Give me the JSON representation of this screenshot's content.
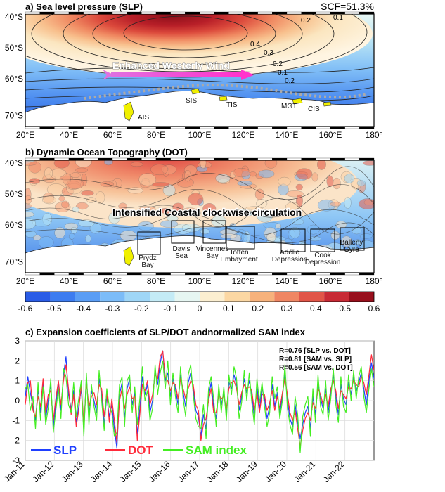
{
  "panel_a": {
    "title": "a) Sea level pressure (SLP)",
    "scf": "SCF=51.3%",
    "wind_label": "Enhanced Westerly Wind",
    "lat_labels": [
      "40°S",
      "50°S",
      "60°S",
      "70°S"
    ],
    "lon_labels": [
      "20°E",
      "40°E",
      "60°E",
      "80°E",
      "100°E",
      "120°E",
      "140°E",
      "160°E",
      "180°"
    ],
    "contour_labels": [
      "0.2",
      "0.1",
      "0.4",
      "0.3",
      "0.2",
      "0.1",
      "0.2"
    ],
    "places": [
      "AIS",
      "SIS",
      "TIS",
      "MGT",
      "CIS"
    ]
  },
  "panel_b": {
    "title": "b) Dynamic Ocean Topography (DOT)",
    "circulation_label": "Intensified Coastal clockwise circulation",
    "lat_labels": [
      "40°S",
      "50°S",
      "60°S",
      "70°S"
    ],
    "lon_labels": [
      "20°E",
      "40°E",
      "60°E",
      "80°E",
      "100°E",
      "120°E",
      "140°E",
      "160°E",
      "180°"
    ],
    "boxes": [
      {
        "name": "Prydz Bay",
        "lines": [
          "Prydz",
          "Bay"
        ]
      },
      {
        "name": "Davis Sea",
        "lines": [
          "Davis",
          "Sea"
        ]
      },
      {
        "name": "Vincennes Bay",
        "lines": [
          "Vincennes",
          "Bay"
        ]
      },
      {
        "name": "Totten Embayment",
        "lines": [
          "Totten",
          "Embayment"
        ]
      },
      {
        "name": "Adélie Depression",
        "lines": [
          "Adélie",
          "Depression"
        ]
      },
      {
        "name": "Cook Depression",
        "lines": [
          "Cook",
          "Depression"
        ]
      },
      {
        "name": "Balleny Gyre",
        "lines": [
          "Balleny",
          "Gyre"
        ]
      }
    ]
  },
  "colorbar": {
    "ticks": [
      "-0.6",
      "-0.5",
      "-0.4",
      "-0.3",
      "-0.2",
      "-0.1",
      "0",
      "0.1",
      "0.2",
      "0.3",
      "0.4",
      "0.5",
      "0.6"
    ],
    "colors": [
      "#2a5ce6",
      "#3d7cf0",
      "#5a9df5",
      "#7cbcf8",
      "#9fd6f7",
      "#c4ebf6",
      "#e6f6f2",
      "#fbeed0",
      "#fbd7a3",
      "#f7b27c",
      "#ef8663",
      "#e15548",
      "#c82a35",
      "#980f1c"
    ]
  },
  "chart_data": {
    "type": "line",
    "title": "c) Expansion coefficients of SLP/DOT andnormalized SAM index",
    "ylim": [
      -3,
      3
    ],
    "yticks": [
      "3",
      "2",
      "1",
      "0",
      "-1",
      "-2",
      "-3"
    ],
    "xticks": [
      "Jan-11",
      "Jan-12",
      "Jan-13",
      "Jan-14",
      "Jan-15",
      "Jan-16",
      "Jan-17",
      "Jan-18",
      "Jan-19",
      "Jan-20",
      "Jan-21",
      "Jan-22"
    ],
    "grid": true,
    "annotations": [
      "R=0.76 [SLP vs. DOT]",
      "R=0.81 [SAM vs. SLP]",
      "R=0.56 [SAM vs. DOT]"
    ],
    "series": [
      {
        "name": "SLP",
        "color": "#1f3fff",
        "values": [
          0.2,
          1.2,
          0.4,
          -0.3,
          -1.0,
          0.6,
          -0.6,
          1.0,
          -0.9,
          0.0,
          0.8,
          -1.3,
          -0.2,
          0.9,
          -0.5,
          1.3,
          2.2,
          0.3,
          -0.4,
          0.5,
          -1.1,
          -0.3,
          0.6,
          -1.5,
          1.2,
          -0.8,
          0.5,
          0.0,
          -0.6,
          1.1,
          0.3,
          -1.2,
          0.2,
          -0.8,
          -0.2,
          -1.4,
          -2.4,
          0.3,
          0.9,
          -0.9,
          0.6,
          1.1,
          -0.2,
          0.4,
          -1.7,
          -0.4,
          1.2,
          0.3,
          0.8,
          -0.6,
          0.0,
          1.5,
          0.8,
          1.9,
          2.5,
          1.0,
          1.4,
          0.2,
          1.1,
          0.6,
          -0.2,
          1.3,
          0.4,
          -0.3,
          0.9,
          1.4,
          0.6,
          -0.5,
          -0.8,
          -1.8,
          -0.7,
          -1.4,
          0.2,
          0.9,
          -0.3,
          -0.9,
          0.5,
          -0.2,
          0.4,
          -0.7,
          0.9,
          0.6,
          1.3,
          0.8,
          -0.5,
          0.2,
          1.1,
          0.4,
          1.0,
          0.3,
          -0.8,
          0.7,
          -0.4,
          0.6,
          0.1,
          -0.9,
          -0.3,
          0.8,
          -0.3,
          0.4,
          -0.6,
          0.2,
          1.4,
          0.0,
          -0.9,
          -1.3,
          -0.2,
          -1.1,
          -1.9,
          -1.2,
          -0.6,
          -0.3,
          -1.4,
          0.2,
          -0.7,
          0.9,
          0.1,
          -0.4,
          0.6,
          -0.6,
          0.4,
          1.3,
          0.2,
          -0.7,
          0.8,
          0.1,
          -0.2,
          0.9,
          0.3,
          1.2,
          0.5,
          0.9,
          1.4,
          0.6,
          -0.2,
          1.0,
          1.9,
          1.1
        ]
      },
      {
        "name": "DOT",
        "color": "#ff2a3a",
        "values": [
          -0.2,
          0.9,
          1.0,
          -0.5,
          -0.8,
          0.2,
          -0.3,
          1.1,
          -0.6,
          0.3,
          0.5,
          -1.0,
          0.1,
          1.0,
          -0.2,
          1.0,
          1.8,
          0.6,
          -0.7,
          0.3,
          -1.3,
          -0.5,
          0.8,
          -1.2,
          0.9,
          -0.3,
          0.2,
          0.4,
          -0.2,
          0.8,
          0.6,
          -0.8,
          0.4,
          -1.1,
          0.1,
          -1.0,
          -2.1,
          0.0,
          0.6,
          -0.4,
          0.3,
          0.7,
          0.1,
          0.2,
          -2.0,
          -0.7,
          0.8,
          0.5,
          1.0,
          -0.2,
          0.3,
          1.3,
          1.1,
          2.2,
          2.5,
          1.2,
          1.0,
          0.5,
          0.9,
          0.8,
          0.1,
          1.1,
          0.6,
          0.1,
          0.6,
          1.0,
          0.8,
          -0.2,
          -0.5,
          -2.0,
          -1.2,
          -0.9,
          0.0,
          0.6,
          -0.6,
          -0.6,
          0.3,
          0.1,
          0.2,
          -0.4,
          0.6,
          0.9,
          1.0,
          0.6,
          -0.2,
          0.4,
          0.8,
          0.6,
          0.7,
          0.5,
          -0.5,
          0.4,
          -0.6,
          0.3,
          0.3,
          -0.5,
          -0.1,
          0.5,
          -0.5,
          0.2,
          -0.4,
          0.4,
          1.1,
          0.3,
          -0.6,
          -1.0,
          -0.5,
          -1.4,
          -2.3,
          -1.5,
          -0.9,
          -0.6,
          -1.0,
          -0.1,
          -0.4,
          0.6,
          0.3,
          -0.2,
          0.3,
          -0.3,
          0.6,
          1.0,
          0.5,
          -0.4,
          0.5,
          0.3,
          0.1,
          0.7,
          0.6,
          1.0,
          0.8,
          0.7,
          1.2,
          0.9,
          0.3,
          1.3,
          2.3,
          1.5
        ]
      },
      {
        "name": "SAM index",
        "color": "#44ee22",
        "values": [
          0.6,
          0.8,
          -0.5,
          0.2,
          -1.4,
          0.9,
          -1.0,
          0.7,
          -1.2,
          -0.4,
          1.1,
          -1.6,
          -0.5,
          0.6,
          -0.9,
          1.6,
          1.2,
          -0.2,
          -0.6,
          0.9,
          -0.8,
          0.1,
          1.0,
          -1.8,
          1.4,
          -1.2,
          0.8,
          -0.3,
          -1.0,
          1.5,
          0.0,
          -1.5,
          0.6,
          -0.3,
          -0.6,
          -1.8,
          -1.6,
          0.8,
          1.2,
          -1.3,
          1.0,
          1.3,
          -0.6,
          0.7,
          -1.2,
          0.1,
          1.7,
          0.0,
          0.5,
          -1.0,
          -0.4,
          1.8,
          0.3,
          1.4,
          2.0,
          0.6,
          2.0,
          -0.2,
          1.4,
          0.2,
          -0.6,
          1.7,
          0.1,
          -0.8,
          1.3,
          1.8,
          0.3,
          -0.9,
          -1.3,
          -1.4,
          -0.2,
          -1.9,
          0.6,
          1.2,
          0.1,
          -1.3,
          0.8,
          -0.6,
          0.7,
          -1.0,
          1.3,
          0.3,
          1.7,
          1.1,
          -0.9,
          -0.1,
          1.5,
          0.0,
          1.4,
          -0.1,
          -1.2,
          1.1,
          -0.1,
          0.9,
          -0.3,
          -1.3,
          -0.6,
          1.2,
          0.1,
          0.7,
          -0.9,
          0.0,
          1.8,
          -0.4,
          -1.2,
          -1.7,
          0.2,
          -0.7,
          -2.6,
          -0.8,
          -0.2,
          0.2,
          -1.8,
          0.6,
          -1.1,
          1.3,
          -0.3,
          -0.7,
          1.0,
          -1.0,
          0.1,
          1.6,
          -0.2,
          -1.1,
          1.2,
          -0.3,
          -0.6,
          1.3,
          0.0,
          1.5,
          0.1,
          1.2,
          1.7,
          0.2,
          -0.6,
          0.6,
          1.6,
          0.7
        ]
      }
    ]
  }
}
